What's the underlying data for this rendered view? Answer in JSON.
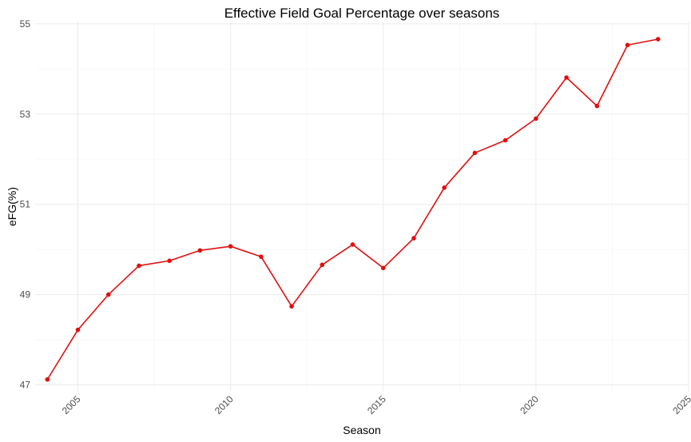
{
  "chart_data": {
    "type": "line",
    "title": "Effective Field Goal Percentage over seasons",
    "xlabel": "Season",
    "ylabel": "eFG(%)",
    "xlim": [
      2003.6,
      2025
    ],
    "ylim": [
      46.85,
      55.05
    ],
    "x_ticks": [
      2005,
      2010,
      2015,
      2020,
      2025
    ],
    "y_ticks": [
      47,
      49,
      51,
      53,
      55
    ],
    "grid": true,
    "color": "#e01010",
    "series": [
      {
        "x": [
          2004,
          2005,
          2006,
          2007,
          2008,
          2009,
          2010,
          2011,
          2012,
          2013,
          2014,
          2015,
          2016,
          2017,
          2018,
          2019,
          2020,
          2021,
          2022,
          2023,
          2024
        ],
        "values": [
          47.12,
          48.22,
          49.0,
          49.64,
          49.75,
          49.98,
          50.07,
          49.84,
          48.74,
          49.66,
          50.11,
          49.59,
          50.25,
          51.37,
          52.14,
          52.42,
          52.9,
          53.81,
          53.18,
          54.53,
          54.66
        ]
      }
    ]
  }
}
